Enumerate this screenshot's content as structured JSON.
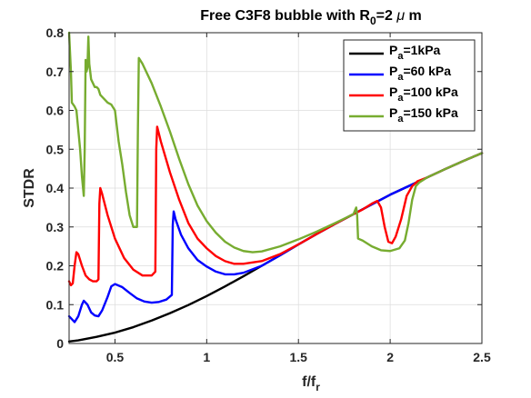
{
  "chart_data": {
    "type": "line",
    "title": {
      "prefix": "Free C3F8 bubble with R",
      "sub": "0",
      "middle": "=2 ",
      "mu": "μ",
      "suffix": " m"
    },
    "xlabel": {
      "main": "f/f",
      "sub": "r"
    },
    "ylabel": "STDR",
    "xlim": [
      0.25,
      2.5
    ],
    "ylim": [
      0,
      0.8
    ],
    "xticks": [
      0.5,
      1,
      1.5,
      2,
      2.5
    ],
    "xtick_labels": [
      "0.5",
      "1",
      "1.5",
      "2",
      "2.5"
    ],
    "yticks": [
      0,
      0.1,
      0.2,
      0.3,
      0.4,
      0.5,
      0.6,
      0.7,
      0.8
    ],
    "ytick_labels": [
      "0",
      "0.1",
      "0.2",
      "0.3",
      "0.4",
      "0.5",
      "0.6",
      "0.7",
      "0.8"
    ],
    "grid": true,
    "legend_position": "top-right",
    "series": [
      {
        "name": {
          "p": "P",
          "sub": "a",
          "rest": "=1kPa"
        },
        "color": "#000000",
        "points": [
          [
            0.25,
            0.005
          ],
          [
            0.3,
            0.008
          ],
          [
            0.4,
            0.017
          ],
          [
            0.5,
            0.028
          ],
          [
            0.6,
            0.042
          ],
          [
            0.7,
            0.059
          ],
          [
            0.8,
            0.078
          ],
          [
            0.9,
            0.099
          ],
          [
            1.0,
            0.122
          ],
          [
            1.1,
            0.147
          ],
          [
            1.2,
            0.173
          ],
          [
            1.3,
            0.2
          ],
          [
            1.4,
            0.227
          ],
          [
            1.5,
            0.255
          ],
          [
            1.6,
            0.282
          ],
          [
            1.7,
            0.308
          ],
          [
            1.8,
            0.333
          ],
          [
            1.9,
            0.358
          ],
          [
            2.0,
            0.383
          ],
          [
            2.1,
            0.405
          ],
          [
            2.2,
            0.427
          ],
          [
            2.3,
            0.449
          ],
          [
            2.4,
            0.47
          ],
          [
            2.5,
            0.49
          ]
        ]
      },
      {
        "name": {
          "p": "P",
          "sub": "a",
          "rest": "=60 kPa"
        },
        "color": "#0000ff",
        "points": [
          [
            0.25,
            0.07
          ],
          [
            0.27,
            0.06
          ],
          [
            0.28,
            0.055
          ],
          [
            0.3,
            0.07
          ],
          [
            0.32,
            0.1
          ],
          [
            0.33,
            0.11
          ],
          [
            0.35,
            0.1
          ],
          [
            0.37,
            0.08
          ],
          [
            0.39,
            0.072
          ],
          [
            0.41,
            0.07
          ],
          [
            0.43,
            0.085
          ],
          [
            0.46,
            0.12
          ],
          [
            0.48,
            0.147
          ],
          [
            0.5,
            0.153
          ],
          [
            0.54,
            0.145
          ],
          [
            0.58,
            0.13
          ],
          [
            0.62,
            0.116
          ],
          [
            0.66,
            0.108
          ],
          [
            0.7,
            0.105
          ],
          [
            0.74,
            0.107
          ],
          [
            0.78,
            0.113
          ],
          [
            0.81,
            0.125
          ],
          [
            0.815,
            0.305
          ],
          [
            0.82,
            0.34
          ],
          [
            0.83,
            0.32
          ],
          [
            0.86,
            0.28
          ],
          [
            0.9,
            0.245
          ],
          [
            0.95,
            0.215
          ],
          [
            1.0,
            0.198
          ],
          [
            1.05,
            0.185
          ],
          [
            1.1,
            0.178
          ],
          [
            1.15,
            0.178
          ],
          [
            1.2,
            0.182
          ],
          [
            1.3,
            0.2
          ],
          [
            1.4,
            0.227
          ],
          [
            1.5,
            0.255
          ],
          [
            1.6,
            0.282
          ],
          [
            1.7,
            0.308
          ],
          [
            1.8,
            0.333
          ],
          [
            1.9,
            0.358
          ],
          [
            2.0,
            0.383
          ],
          [
            2.1,
            0.405
          ],
          [
            2.2,
            0.427
          ],
          [
            2.3,
            0.449
          ],
          [
            2.4,
            0.47
          ],
          [
            2.5,
            0.49
          ]
        ]
      },
      {
        "name": {
          "p": "P",
          "sub": "a",
          "rest": "=100 kPa"
        },
        "color": "#ff0000",
        "points": [
          [
            0.25,
            0.16
          ],
          [
            0.26,
            0.15
          ],
          [
            0.27,
            0.155
          ],
          [
            0.28,
            0.2
          ],
          [
            0.29,
            0.235
          ],
          [
            0.3,
            0.23
          ],
          [
            0.32,
            0.2
          ],
          [
            0.34,
            0.175
          ],
          [
            0.36,
            0.165
          ],
          [
            0.38,
            0.16
          ],
          [
            0.4,
            0.16
          ],
          [
            0.41,
            0.165
          ],
          [
            0.415,
            0.36
          ],
          [
            0.42,
            0.4
          ],
          [
            0.43,
            0.385
          ],
          [
            0.46,
            0.33
          ],
          [
            0.5,
            0.27
          ],
          [
            0.55,
            0.22
          ],
          [
            0.6,
            0.19
          ],
          [
            0.65,
            0.175
          ],
          [
            0.7,
            0.175
          ],
          [
            0.72,
            0.185
          ],
          [
            0.725,
            0.5
          ],
          [
            0.73,
            0.558
          ],
          [
            0.75,
            0.52
          ],
          [
            0.8,
            0.44
          ],
          [
            0.85,
            0.37
          ],
          [
            0.9,
            0.31
          ],
          [
            0.95,
            0.27
          ],
          [
            1.0,
            0.245
          ],
          [
            1.05,
            0.225
          ],
          [
            1.1,
            0.212
          ],
          [
            1.15,
            0.205
          ],
          [
            1.2,
            0.205
          ],
          [
            1.3,
            0.212
          ],
          [
            1.4,
            0.23
          ],
          [
            1.5,
            0.255
          ],
          [
            1.6,
            0.282
          ],
          [
            1.7,
            0.308
          ],
          [
            1.8,
            0.333
          ],
          [
            1.85,
            0.345
          ],
          [
            1.9,
            0.36
          ],
          [
            1.93,
            0.367
          ],
          [
            1.95,
            0.35
          ],
          [
            1.97,
            0.3
          ],
          [
            1.99,
            0.262
          ],
          [
            2.01,
            0.258
          ],
          [
            2.03,
            0.275
          ],
          [
            2.06,
            0.32
          ],
          [
            2.09,
            0.38
          ],
          [
            2.12,
            0.405
          ],
          [
            2.15,
            0.418
          ],
          [
            2.2,
            0.427
          ],
          [
            2.3,
            0.449
          ],
          [
            2.4,
            0.47
          ],
          [
            2.5,
            0.49
          ]
        ]
      },
      {
        "name": {
          "p": "P",
          "sub": "a",
          "rest": "=150 kPa"
        },
        "color": "#77ac30",
        "points": [
          [
            0.25,
            0.8
          ],
          [
            0.255,
            0.75
          ],
          [
            0.26,
            0.7
          ],
          [
            0.265,
            0.62
          ],
          [
            0.28,
            0.61
          ],
          [
            0.29,
            0.6
          ],
          [
            0.3,
            0.55
          ],
          [
            0.31,
            0.5
          ],
          [
            0.32,
            0.43
          ],
          [
            0.33,
            0.38
          ],
          [
            0.335,
            0.5
          ],
          [
            0.34,
            0.73
          ],
          [
            0.345,
            0.7
          ],
          [
            0.35,
            0.71
          ],
          [
            0.355,
            0.79
          ],
          [
            0.36,
            0.72
          ],
          [
            0.37,
            0.68
          ],
          [
            0.38,
            0.67
          ],
          [
            0.39,
            0.66
          ],
          [
            0.4,
            0.66
          ],
          [
            0.41,
            0.655
          ],
          [
            0.42,
            0.64
          ],
          [
            0.44,
            0.63
          ],
          [
            0.46,
            0.62
          ],
          [
            0.48,
            0.615
          ],
          [
            0.5,
            0.6
          ],
          [
            0.51,
            0.56
          ],
          [
            0.52,
            0.52
          ],
          [
            0.54,
            0.46
          ],
          [
            0.56,
            0.39
          ],
          [
            0.58,
            0.33
          ],
          [
            0.6,
            0.3
          ],
          [
            0.62,
            0.3
          ],
          [
            0.625,
            0.55
          ],
          [
            0.63,
            0.735
          ],
          [
            0.65,
            0.72
          ],
          [
            0.7,
            0.67
          ],
          [
            0.75,
            0.61
          ],
          [
            0.8,
            0.545
          ],
          [
            0.85,
            0.475
          ],
          [
            0.9,
            0.41
          ],
          [
            0.95,
            0.355
          ],
          [
            1.0,
            0.315
          ],
          [
            1.05,
            0.285
          ],
          [
            1.1,
            0.262
          ],
          [
            1.15,
            0.247
          ],
          [
            1.2,
            0.238
          ],
          [
            1.25,
            0.235
          ],
          [
            1.3,
            0.237
          ],
          [
            1.4,
            0.25
          ],
          [
            1.5,
            0.268
          ],
          [
            1.6,
            0.288
          ],
          [
            1.7,
            0.31
          ],
          [
            1.8,
            0.333
          ],
          [
            1.815,
            0.35
          ],
          [
            1.82,
            0.33
          ],
          [
            1.825,
            0.27
          ],
          [
            1.85,
            0.265
          ],
          [
            1.9,
            0.25
          ],
          [
            1.95,
            0.24
          ],
          [
            2.0,
            0.238
          ],
          [
            2.05,
            0.245
          ],
          [
            2.08,
            0.265
          ],
          [
            2.1,
            0.31
          ],
          [
            2.12,
            0.37
          ],
          [
            2.14,
            0.405
          ],
          [
            2.16,
            0.415
          ],
          [
            2.2,
            0.427
          ],
          [
            2.3,
            0.449
          ],
          [
            2.4,
            0.47
          ],
          [
            2.5,
            0.49
          ]
        ]
      }
    ]
  }
}
